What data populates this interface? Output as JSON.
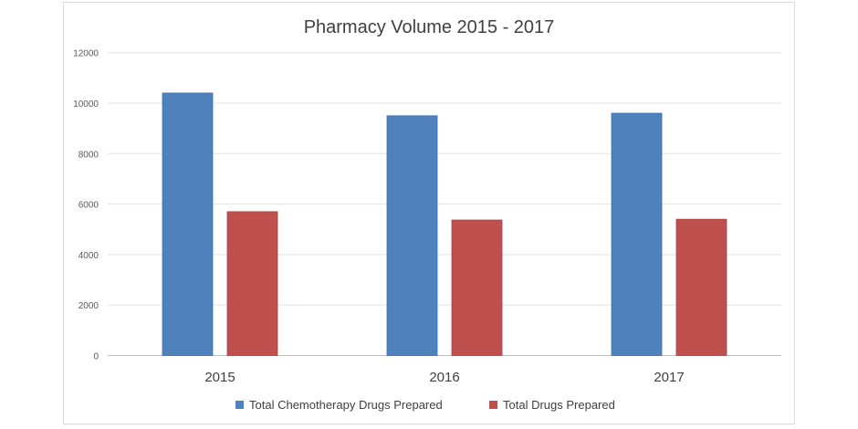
{
  "chart_data": {
    "type": "bar",
    "title": "Pharmacy Volume 2015 - 2017",
    "categories": [
      "2015",
      "2016",
      "2017"
    ],
    "series": [
      {
        "name": "Total Chemotherapy Drugs Prepared",
        "values": [
          10400,
          9500,
          9600
        ],
        "color": "#4f81bd"
      },
      {
        "name": "Total Drugs Prepared",
        "values": [
          5700,
          5370,
          5400
        ],
        "color": "#c0504d"
      }
    ],
    "xlabel": "",
    "ylabel": "",
    "ylim": [
      0,
      12000
    ],
    "yticks": [
      "0",
      "2000",
      "4000",
      "6000",
      "8000",
      "10000",
      "12000"
    ],
    "grid": true,
    "legend_position": "bottom"
  }
}
